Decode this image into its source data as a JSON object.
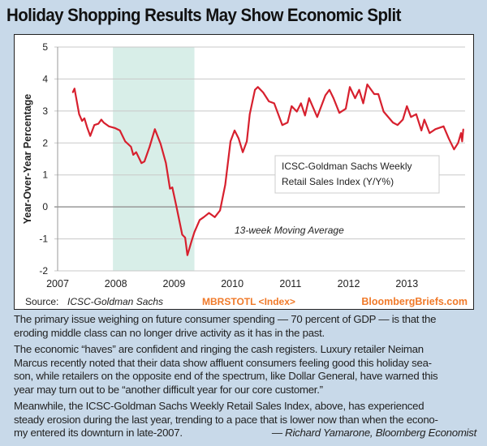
{
  "title": "Holiday Shopping Results May Show Economic Split",
  "chart_data": {
    "type": "line",
    "title": "",
    "ylabel": "Year-Over-Year Percentage",
    "xlabel": "",
    "ylim": [
      -2,
      5
    ],
    "xlim": [
      2007,
      2014
    ],
    "yticks": [
      "5",
      "4",
      "3",
      "2",
      "1",
      "0",
      "-1",
      "-2"
    ],
    "xticks": [
      "2007",
      "2008",
      "2009",
      "2010",
      "2011",
      "2012",
      "2013"
    ],
    "grid": true,
    "line_color": "#d7202e",
    "shaded_region": {
      "from": 2007.95,
      "to": 2009.35,
      "color": "#d8eee8"
    },
    "legend_text": "ICSC-Goldman Sachs Weekly Retail Sales Index (Y/Y%)",
    "legend_lines": [
      "ICSC-Goldman Sachs Weekly",
      "Retail Sales Index (Y/Y%)"
    ],
    "annotation": "13-week Moving Average",
    "source": "Source:",
    "source_name": "ICSC-Goldman Sachs",
    "ticker": "MBRSTOTL <Index>",
    "brand": "BloombergBriefs.com",
    "series": [
      {
        "x": [
          2007.26,
          2007.29,
          2007.37,
          2007.42,
          2007.46,
          2007.51,
          2007.56,
          2007.63,
          2007.7,
          2007.75,
          2007.79,
          2007.88,
          2007.98,
          2008.07,
          2008.16,
          2008.26,
          2008.3,
          2008.35,
          2008.44,
          2008.49,
          2008.58,
          2008.67,
          2008.77,
          2008.86,
          2008.93,
          2008.97,
          2009.04,
          2009.14,
          2009.19,
          2009.23,
          2009.3,
          2009.35,
          2009.44,
          2009.51,
          2009.6,
          2009.7,
          2009.79,
          2009.88,
          2009.97,
          2010.04,
          2010.11,
          2010.18,
          2010.25,
          2010.3,
          2010.39,
          2010.44,
          2010.53,
          2010.63,
          2010.72,
          2010.86,
          2010.95,
          2011.02,
          2011.11,
          2011.18,
          2011.25,
          2011.32,
          2011.46,
          2011.6,
          2011.67,
          2011.74,
          2011.84,
          2011.95,
          2012.02,
          2012.11,
          2012.18,
          2012.25,
          2012.32,
          2012.44,
          2012.51,
          2012.6,
          2012.76,
          2012.84,
          2012.93,
          2013.0,
          2013.07,
          2013.16,
          2013.25,
          2013.3,
          2013.39,
          2013.49,
          2013.63,
          2013.72,
          2013.81,
          2013.88,
          2013.93,
          2013.95,
          2013.97
        ],
        "y": [
          3.58,
          3.7,
          2.9,
          2.69,
          2.77,
          2.47,
          2.22,
          2.56,
          2.6,
          2.73,
          2.64,
          2.52,
          2.47,
          2.39,
          2.05,
          1.88,
          1.63,
          1.71,
          1.37,
          1.42,
          1.88,
          2.43,
          1.97,
          1.37,
          0.57,
          0.61,
          0.02,
          -0.87,
          -0.96,
          -1.51,
          -1.08,
          -0.79,
          -0.41,
          -0.32,
          -0.19,
          -0.32,
          -0.11,
          0.69,
          2.05,
          2.39,
          2.14,
          1.71,
          2.05,
          2.9,
          3.66,
          3.75,
          3.58,
          3.3,
          3.24,
          2.56,
          2.64,
          3.15,
          2.98,
          3.24,
          2.86,
          3.4,
          2.81,
          3.49,
          3.66,
          3.4,
          2.94,
          3.07,
          3.75,
          3.4,
          3.66,
          3.24,
          3.83,
          3.53,
          3.53,
          2.98,
          2.64,
          2.56,
          2.73,
          3.15,
          2.81,
          2.9,
          2.39,
          2.73,
          2.31,
          2.43,
          2.52,
          2.14,
          1.8,
          2.0,
          2.31,
          2.05,
          2.43
        ]
      }
    ]
  },
  "article": {
    "paragraphs": [
      [
        "The primary issue weighing on future consumer spending — 70 percent of GDP — is that the",
        "eroding middle class can no longer drive activity as it has in the past."
      ],
      [
        "The economic “haves” are confident and ringing the cash registers. Luxury retailer Neiman",
        "Marcus recently noted that their data show affluent consumers feeling good this holiday sea-",
        "son, while retailers on the opposite end of the spectrum, like Dollar General, have warned this",
        "year may turn out to be “another difficult year for our core customer.”"
      ],
      [
        "Meanwhile, the ICSC-Goldman Sachs Weekly Retail Sales Index, above, has experienced",
        "steady erosion during the last year, trending to a pace that is lower now than when the econo-",
        "my entered its downturn in late-2007."
      ]
    ],
    "byline": "— Richard Yamarone, Bloomberg Economist"
  }
}
